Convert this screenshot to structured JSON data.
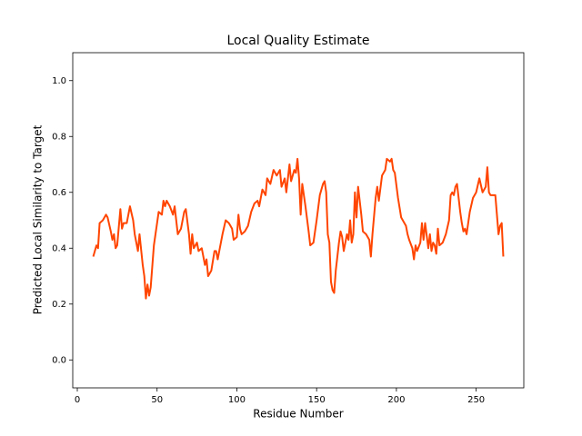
{
  "chart_data": {
    "type": "line",
    "title": "Local Quality Estimate",
    "x_label": "Residue Number",
    "y_label": "Predicted Local Similarity to Target",
    "xlim": [
      -2.85,
      279.85
    ],
    "ylim": [
      -0.1,
      1.1
    ],
    "xticks": [
      0,
      50,
      100,
      150,
      200,
      250
    ],
    "yticks": [
      {
        "value": 0,
        "label": "0.0"
      },
      0.2,
      0.4,
      0.6,
      0.8,
      {
        "value": 1,
        "label": "1.0"
      }
    ],
    "series": [
      {
        "color": "#ff4500",
        "x": [
          10,
          12,
          13,
          14,
          16,
          18,
          19,
          21,
          22,
          23,
          24,
          25,
          27,
          28,
          29,
          31,
          33,
          35,
          36,
          38,
          39,
          41,
          42,
          43,
          44,
          45,
          46,
          48,
          50,
          51,
          53,
          54,
          55,
          56,
          58,
          60,
          61,
          63,
          65,
          67,
          68,
          70,
          71,
          72,
          73,
          75,
          76,
          78,
          80,
          81,
          82,
          84,
          86,
          87,
          88,
          89,
          91,
          93,
          95,
          96,
          97,
          98,
          100,
          101,
          102,
          103,
          105,
          107,
          109,
          111,
          113,
          114,
          116,
          118,
          119,
          121,
          123,
          125,
          127,
          128,
          130,
          131,
          133,
          134,
          136,
          137,
          138,
          139,
          140,
          141,
          143,
          145,
          146,
          148,
          150,
          152,
          154,
          155,
          156,
          157,
          158,
          159,
          160,
          161,
          162,
          164,
          165,
          166,
          167,
          169,
          170,
          171,
          172,
          173,
          174,
          175,
          176,
          178,
          179,
          181,
          183,
          184,
          185,
          187,
          188,
          189,
          191,
          193,
          194,
          196,
          197,
          198,
          199,
          201,
          203,
          204,
          206,
          207,
          208,
          210,
          211,
          212,
          213,
          215,
          216,
          217,
          218,
          220,
          221,
          222,
          223,
          224,
          225,
          226,
          227,
          229,
          231,
          233,
          234,
          235,
          236,
          237,
          238,
          240,
          241,
          242,
          243,
          244,
          246,
          248,
          249,
          250,
          252,
          254,
          256,
          257,
          258,
          259,
          262,
          263,
          264,
          265,
          266,
          267
        ],
        "values": [
          0.37,
          0.41,
          0.4,
          0.49,
          0.5,
          0.52,
          0.51,
          0.46,
          0.43,
          0.45,
          0.4,
          0.41,
          0.54,
          0.47,
          0.49,
          0.49,
          0.55,
          0.5,
          0.45,
          0.39,
          0.45,
          0.34,
          0.3,
          0.22,
          0.27,
          0.23,
          0.26,
          0.41,
          0.49,
          0.53,
          0.52,
          0.57,
          0.55,
          0.57,
          0.55,
          0.52,
          0.55,
          0.45,
          0.47,
          0.53,
          0.54,
          0.45,
          0.38,
          0.45,
          0.4,
          0.42,
          0.39,
          0.4,
          0.34,
          0.36,
          0.3,
          0.32,
          0.39,
          0.39,
          0.36,
          0.39,
          0.45,
          0.5,
          0.49,
          0.48,
          0.47,
          0.43,
          0.44,
          0.52,
          0.47,
          0.45,
          0.46,
          0.48,
          0.53,
          0.56,
          0.57,
          0.55,
          0.61,
          0.59,
          0.65,
          0.63,
          0.68,
          0.66,
          0.68,
          0.62,
          0.65,
          0.6,
          0.7,
          0.64,
          0.68,
          0.67,
          0.72,
          0.65,
          0.52,
          0.63,
          0.55,
          0.46,
          0.41,
          0.42,
          0.5,
          0.59,
          0.63,
          0.64,
          0.6,
          0.45,
          0.42,
          0.28,
          0.25,
          0.24,
          0.32,
          0.42,
          0.46,
          0.44,
          0.39,
          0.45,
          0.43,
          0.5,
          0.42,
          0.45,
          0.6,
          0.51,
          0.62,
          0.52,
          0.46,
          0.45,
          0.43,
          0.37,
          0.45,
          0.58,
          0.62,
          0.57,
          0.66,
          0.68,
          0.72,
          0.71,
          0.72,
          0.68,
          0.67,
          0.58,
          0.51,
          0.5,
          0.48,
          0.45,
          0.43,
          0.4,
          0.36,
          0.41,
          0.39,
          0.42,
          0.49,
          0.43,
          0.49,
          0.4,
          0.45,
          0.39,
          0.42,
          0.41,
          0.38,
          0.47,
          0.41,
          0.42,
          0.45,
          0.5,
          0.59,
          0.6,
          0.59,
          0.62,
          0.63,
          0.53,
          0.49,
          0.46,
          0.47,
          0.45,
          0.53,
          0.58,
          0.59,
          0.6,
          0.65,
          0.6,
          0.62,
          0.69,
          0.6,
          0.59,
          0.59,
          0.52,
          0.45,
          0.48,
          0.49,
          0.37
        ]
      }
    ]
  }
}
